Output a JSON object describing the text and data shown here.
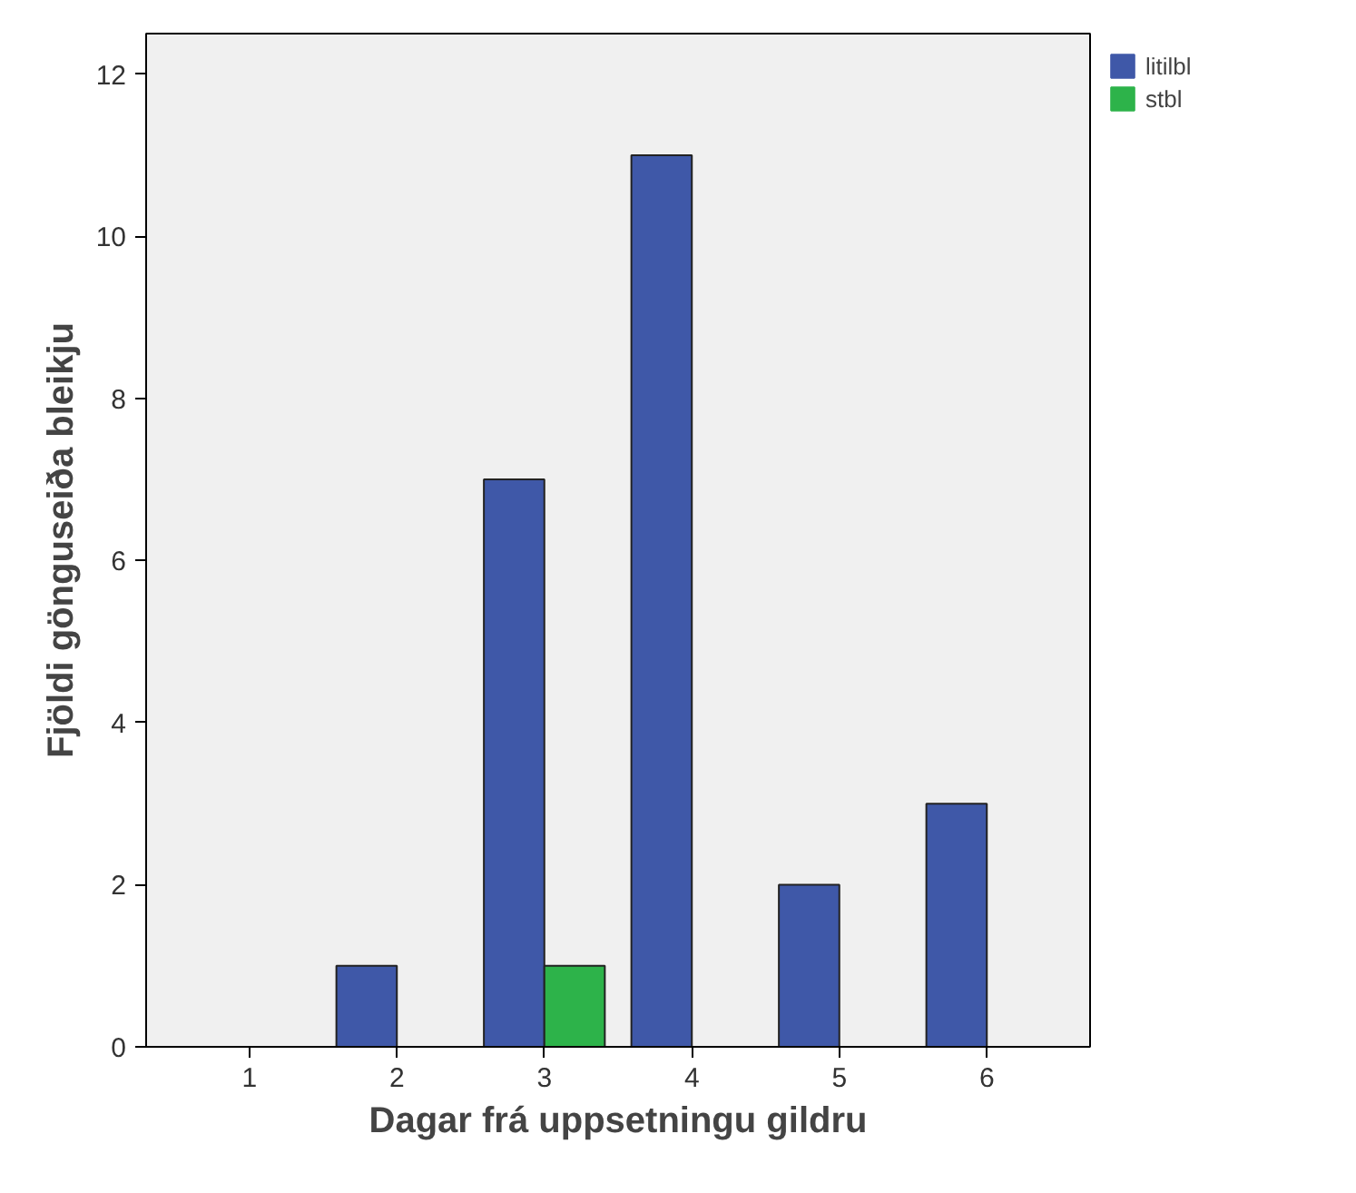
{
  "chart_data": {
    "type": "bar",
    "xlabel": "Dagar frá uppsetningu gildru",
    "ylabel": "Fjöldi gönguseiða bleikju",
    "categories": [
      "1",
      "2",
      "3",
      "4",
      "5",
      "6"
    ],
    "series": [
      {
        "name": "litilbl",
        "color": "#3f58a8",
        "values": [
          0,
          1,
          7,
          11,
          2,
          3
        ]
      },
      {
        "name": "stbl",
        "color": "#2db34a",
        "values": [
          0,
          0,
          1,
          0,
          0,
          0
        ]
      }
    ],
    "ylim": [
      0,
      12.5
    ],
    "yticks": [
      0,
      2,
      4,
      6,
      8,
      10,
      12
    ],
    "grid": false,
    "legend": "top right"
  }
}
